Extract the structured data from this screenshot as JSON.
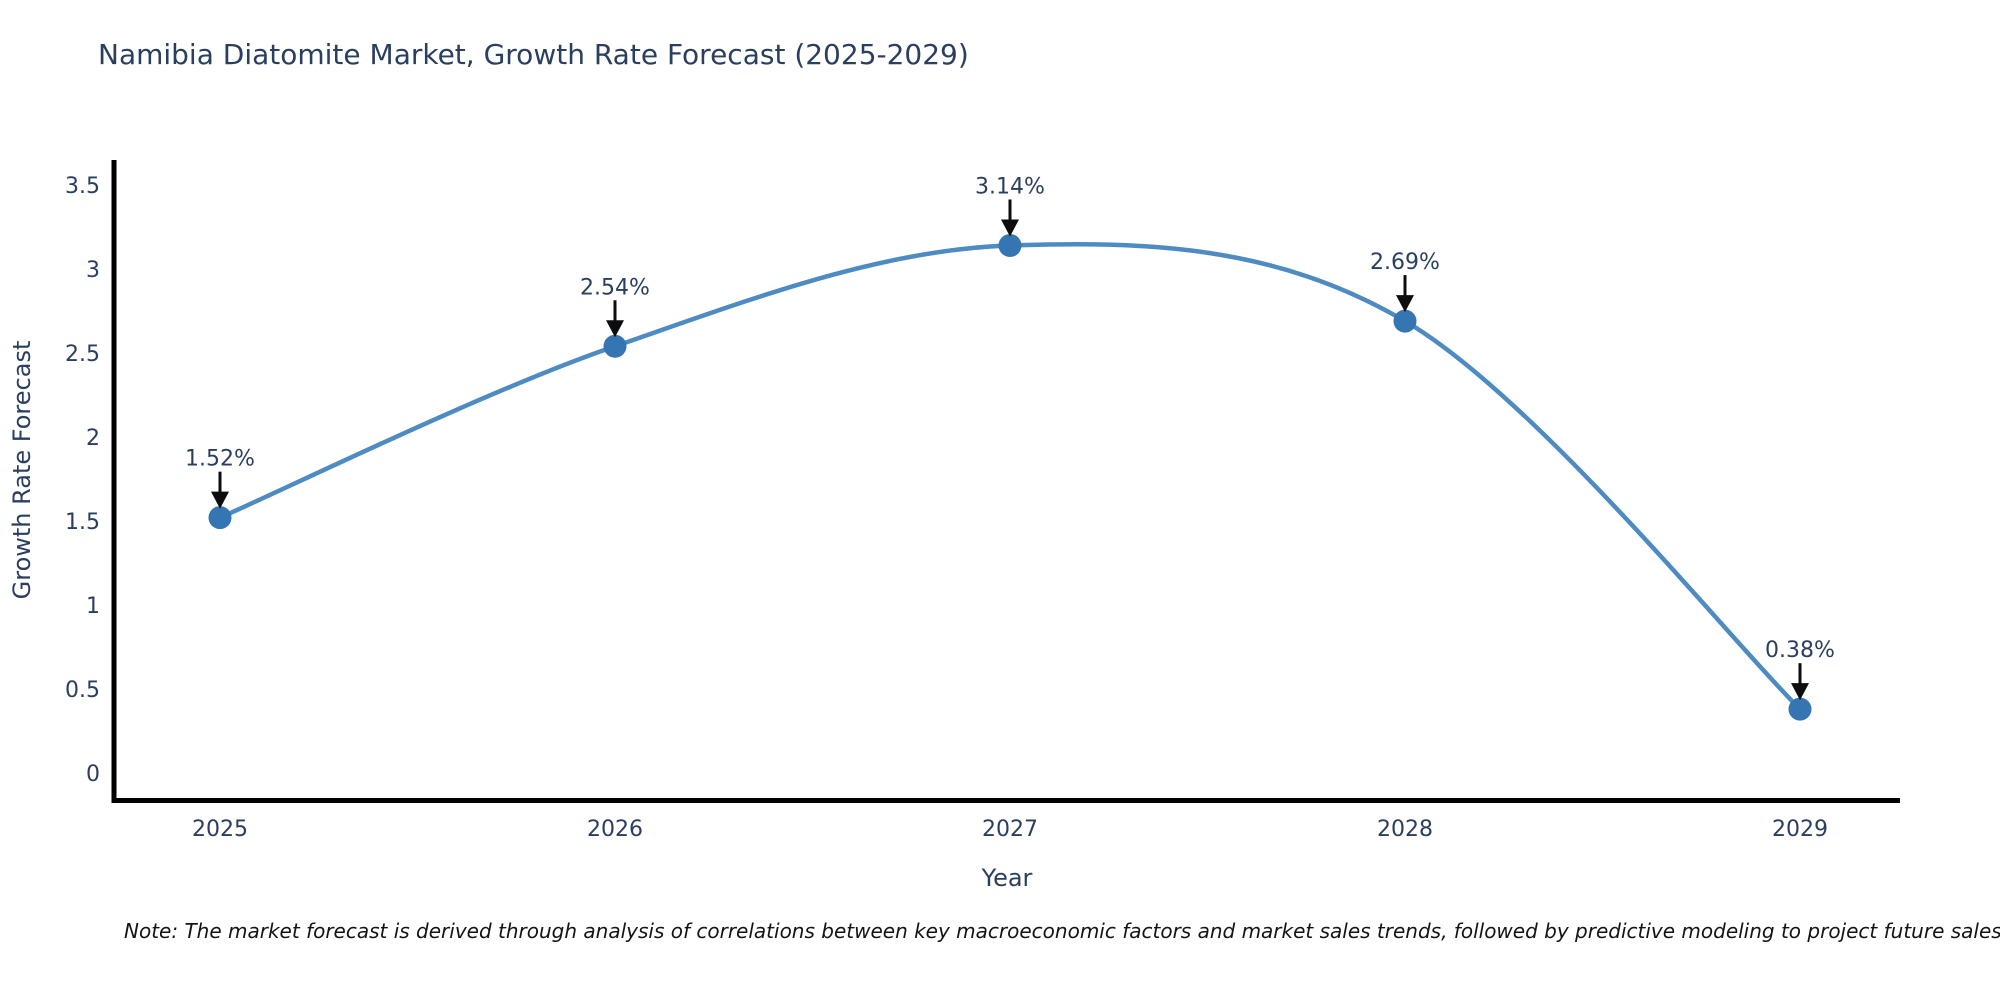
{
  "chart_data": {
    "type": "line",
    "title": "Namibia Diatomite Market, Growth Rate Forecast (2025-2029)",
    "xlabel": "Year",
    "ylabel": "Growth Rate Forecast",
    "x": [
      2025,
      2026,
      2027,
      2028,
      2029
    ],
    "values": [
      1.52,
      2.54,
      3.14,
      2.69,
      0.38
    ],
    "point_labels": [
      "1.52%",
      "2.54%",
      "3.14%",
      "2.69%",
      "0.38%"
    ],
    "x_tick_labels": [
      "2025",
      "2026",
      "2027",
      "2028",
      "2029"
    ],
    "y_ticks": [
      0,
      0.5,
      1,
      1.5,
      2,
      2.5,
      3,
      3.5
    ],
    "y_tick_labels": [
      "0",
      "0.5",
      "1",
      "1.5",
      "2",
      "2.5",
      "3",
      "3.5"
    ],
    "ylim": [
      -0.18,
      3.65
    ],
    "line_shape": "spline",
    "grid": false,
    "legend": "none",
    "colors": {
      "line": "#4d8bc2",
      "marker": "#3575b1",
      "arrow": "#0d0d0d",
      "axis_line": "#000000",
      "tick_text": "#2a3f5f",
      "title_text": "#2a3f5f",
      "annotation_text": "#2a3f5f",
      "background": "#ffffff"
    }
  },
  "note": {
    "text": "Note: The market forecast is derived through analysis of correlations between key macroeconomic factors and market sales trends, followed by predictive modeling to project future sales"
  }
}
